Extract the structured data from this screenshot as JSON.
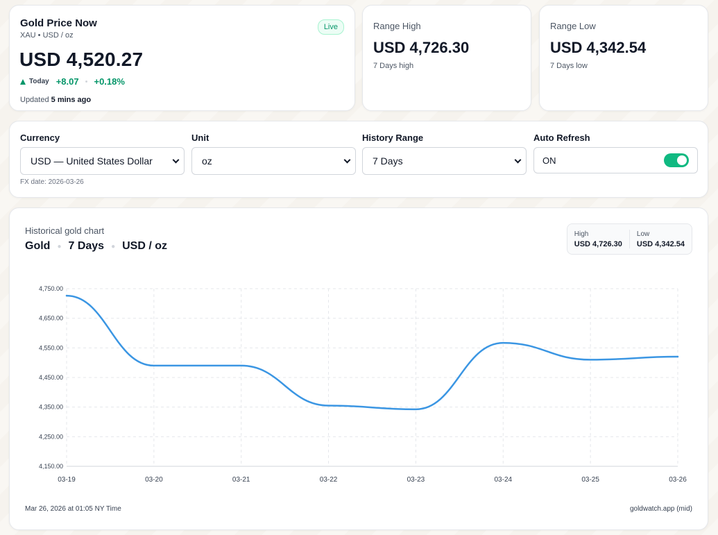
{
  "now": {
    "title": "Gold Price Now",
    "subtitle": "XAU • USD / oz",
    "badge": "Live",
    "price": "USD 4,520.27",
    "today_label": "Today",
    "change_abs": "+8.07",
    "change_pct": "+0.18%",
    "updated_prefix": "Updated",
    "updated_value": "5 mins ago",
    "up_color": "#059669"
  },
  "range_high": {
    "title": "Range High",
    "value": "USD 4,726.30",
    "note": "7 Days high"
  },
  "range_low": {
    "title": "Range Low",
    "value": "USD 4,342.54",
    "note": "7 Days low"
  },
  "controls": {
    "currency": {
      "label": "Currency",
      "value": "USD — United States Dollar"
    },
    "unit": {
      "label": "Unit",
      "value": "oz"
    },
    "history": {
      "label": "History Range",
      "value": "7 Days"
    },
    "auto_refresh": {
      "label": "Auto Refresh",
      "value": "ON",
      "enabled": true
    },
    "fx_date": "FX date: 2026-03-26",
    "toggle_color": "#10b981"
  },
  "chart": {
    "kicker": "Historical gold chart",
    "metal": "Gold",
    "range": "7 Days",
    "unit": "USD / oz",
    "high_label": "High",
    "high_value": "USD 4,726.30",
    "low_label": "Low",
    "low_value": "USD 4,342.54",
    "footer_left": "Mar 26, 2026 at 01:05 NY Time",
    "footer_right": "goldwatch.app (mid)",
    "line_color": "#3b96e3"
  },
  "chart_data": {
    "type": "line",
    "x": [
      "03-19",
      "03-20",
      "03-21",
      "03-22",
      "03-23",
      "03-24",
      "03-25",
      "03-26"
    ],
    "series": [
      {
        "values": [
          4726.3,
          4490.0,
          4490.0,
          4355.0,
          4342.54,
          4567.0,
          4510.0,
          4520.27
        ]
      }
    ],
    "yticks": [
      "4,750.00",
      "4,650.00",
      "4,550.00",
      "4,450.00",
      "4,350.00",
      "4,250.00",
      "4,150.00"
    ],
    "ylim": [
      4150,
      4750
    ],
    "grid": true,
    "title": "",
    "xlabel": "",
    "ylabel": ""
  }
}
